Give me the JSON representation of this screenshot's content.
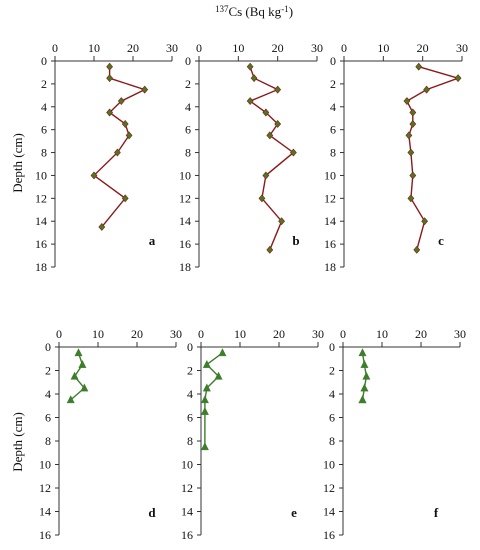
{
  "figure": {
    "top_title": "¹³⁷Cs (Bq kg⁻¹)",
    "top_title_parts": {
      "sup": "137",
      "base": "Cs (Bq kg",
      "unit_sup": "-1",
      "close": ")"
    },
    "ylabel": "Depth (cm)"
  },
  "colors": {
    "top_series": "#8b1a1a",
    "top_marker": "#4a7a1e",
    "bottom_series": "#3e7d2a",
    "axis": "#333333"
  },
  "chart_data": [
    {
      "type": "line",
      "panel": "a",
      "xlim": [
        0,
        30
      ],
      "xticks": [
        0,
        10,
        20,
        30
      ],
      "ylim": [
        0,
        18
      ],
      "yticks": [
        0,
        2,
        4,
        6,
        8,
        10,
        12,
        14,
        16,
        18
      ],
      "series": [
        {
          "marker": "diamond",
          "x": [
            14,
            14,
            23,
            17,
            14,
            18,
            19,
            16,
            10,
            18,
            12
          ],
          "y": [
            0.5,
            1.5,
            2.5,
            3.5,
            4.5,
            5.5,
            6.5,
            8,
            10,
            12,
            14.5
          ]
        }
      ]
    },
    {
      "type": "line",
      "panel": "b",
      "xlim": [
        0,
        30
      ],
      "xticks": [
        0,
        10,
        20,
        30
      ],
      "ylim": [
        0,
        18
      ],
      "series": [
        {
          "marker": "diamond",
          "x": [
            13,
            14,
            20,
            13,
            17,
            20,
            18,
            24,
            17,
            16,
            21,
            18
          ],
          "y": [
            0.5,
            1.5,
            2.5,
            3.5,
            4.5,
            5.5,
            6.5,
            8,
            10,
            12,
            14,
            16.5
          ]
        }
      ]
    },
    {
      "type": "line",
      "panel": "c",
      "xlim": [
        0,
        30
      ],
      "xticks": [
        0,
        10,
        20,
        30
      ],
      "ylim": [
        0,
        18
      ],
      "series": [
        {
          "marker": "diamond",
          "x": [
            19,
            29,
            21,
            16,
            17.5,
            17.5,
            16.5,
            17,
            17.5,
            17,
            20.5,
            18.5
          ],
          "y": [
            0.5,
            1.5,
            2.5,
            3.5,
            4.5,
            5.5,
            6.5,
            8,
            10,
            12,
            14,
            16.5
          ]
        }
      ]
    },
    {
      "type": "line",
      "panel": "d",
      "xlim": [
        0,
        30
      ],
      "xticks": [
        0,
        10,
        20,
        30
      ],
      "ylim": [
        0,
        16
      ],
      "yticks": [
        0,
        2,
        4,
        6,
        8,
        10,
        12,
        14,
        16
      ],
      "series": [
        {
          "marker": "triangle",
          "x": [
            5,
            6,
            4,
            6.5,
            3
          ],
          "y": [
            0.5,
            1.5,
            2.5,
            3.5,
            4.5
          ]
        }
      ]
    },
    {
      "type": "line",
      "panel": "e",
      "xlim": [
        0,
        30
      ],
      "xticks": [
        0,
        10,
        20,
        30
      ],
      "ylim": [
        0,
        16
      ],
      "series": [
        {
          "marker": "triangle",
          "x": [
            5.5,
            1.5,
            4.5,
            1.5,
            1,
            1,
            1
          ],
          "y": [
            0.5,
            1.5,
            2.5,
            3.5,
            4.5,
            5.5,
            8.5
          ]
        }
      ]
    },
    {
      "type": "line",
      "panel": "f",
      "xlim": [
        0,
        30
      ],
      "xticks": [
        0,
        10,
        20,
        30
      ],
      "ylim": [
        0,
        16
      ],
      "series": [
        {
          "marker": "triangle",
          "x": [
            5,
            5.5,
            6,
            5.5,
            5,
            5
          ],
          "y": [
            0.5,
            1.5,
            2.5,
            3.5,
            4.5,
            4.5
          ]
        }
      ]
    }
  ]
}
